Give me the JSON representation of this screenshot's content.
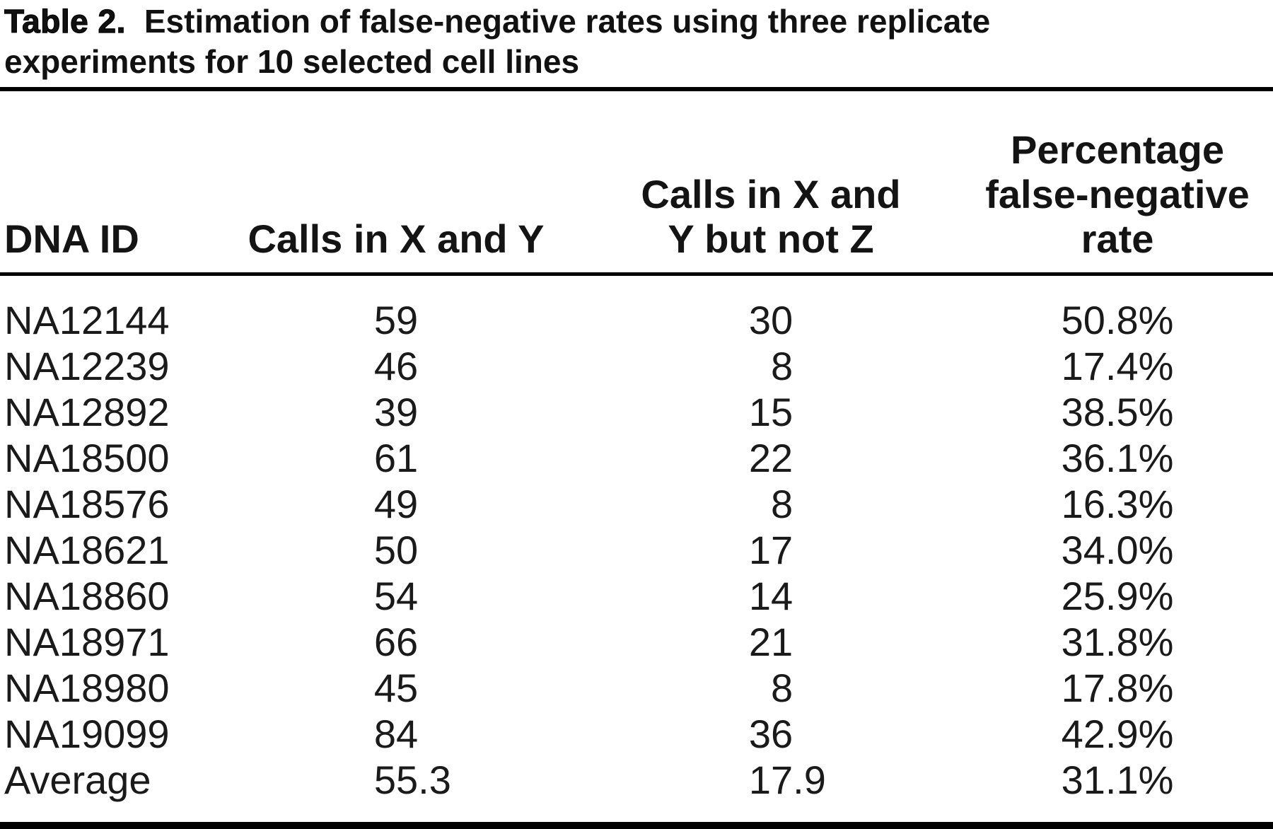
{
  "caption": {
    "label": "Table 2.",
    "text": "Estimation of false-negative rates using three replicate\nexperiments for 10 selected cell lines"
  },
  "table": {
    "columns": [
      "DNA ID",
      "Calls in X and Y",
      "Calls in X and\nY but not Z",
      "Percentage\nfalse-negative\nrate"
    ],
    "rows": [
      {
        "dna_id": "NA12144",
        "calls_xy": "59",
        "calls_xy_not_z": "30",
        "fn_rate": "50.8%"
      },
      {
        "dna_id": "NA12239",
        "calls_xy": "46",
        "calls_xy_not_z": "8",
        "fn_rate": "17.4%"
      },
      {
        "dna_id": "NA12892",
        "calls_xy": "39",
        "calls_xy_not_z": "15",
        "fn_rate": "38.5%"
      },
      {
        "dna_id": "NA18500",
        "calls_xy": "61",
        "calls_xy_not_z": "22",
        "fn_rate": "36.1%"
      },
      {
        "dna_id": "NA18576",
        "calls_xy": "49",
        "calls_xy_not_z": "8",
        "fn_rate": "16.3%"
      },
      {
        "dna_id": "NA18621",
        "calls_xy": "50",
        "calls_xy_not_z": "17",
        "fn_rate": "34.0%"
      },
      {
        "dna_id": "NA18860",
        "calls_xy": "54",
        "calls_xy_not_z": "14",
        "fn_rate": "25.9%"
      },
      {
        "dna_id": "NA18971",
        "calls_xy": "66",
        "calls_xy_not_z": "21",
        "fn_rate": "31.8%"
      },
      {
        "dna_id": "NA18980",
        "calls_xy": "45",
        "calls_xy_not_z": "8",
        "fn_rate": "17.8%"
      },
      {
        "dna_id": "NA19099",
        "calls_xy": "84",
        "calls_xy_not_z": "36",
        "fn_rate": "42.9%"
      },
      {
        "dna_id": "Average",
        "calls_xy": "55.3",
        "calls_xy_not_z": "17.9",
        "fn_rate": "31.1%"
      }
    ]
  },
  "colors": {
    "text": "#161616",
    "rule": "#000000",
    "background": "#ffffff"
  }
}
